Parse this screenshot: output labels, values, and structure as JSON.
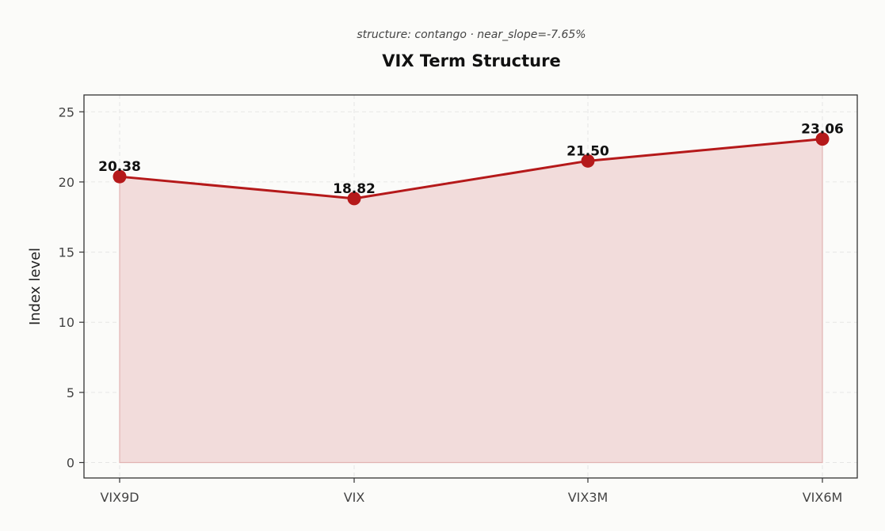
{
  "chart_data": {
    "type": "area",
    "title": "VIX Term Structure",
    "subtitle": "structure: contango · near_slope=-7.65%",
    "xlabel": "",
    "ylabel": "Index level",
    "categories": [
      "VIX9D",
      "VIX",
      "VIX3M",
      "VIX6M"
    ],
    "series": [
      {
        "values": [
          20.38,
          18.82,
          21.5,
          23.06
        ],
        "data_labels": [
          "20.38",
          "18.82",
          "21.50",
          "23.06"
        ]
      }
    ],
    "ylim": [
      -1.1,
      26.2
    ],
    "yticks": [
      0,
      5,
      10,
      15,
      20,
      25
    ],
    "grid": true,
    "colors": {
      "line": "#b5191a",
      "fill": "#f2dcdb",
      "marker": "#b5191a"
    }
  }
}
